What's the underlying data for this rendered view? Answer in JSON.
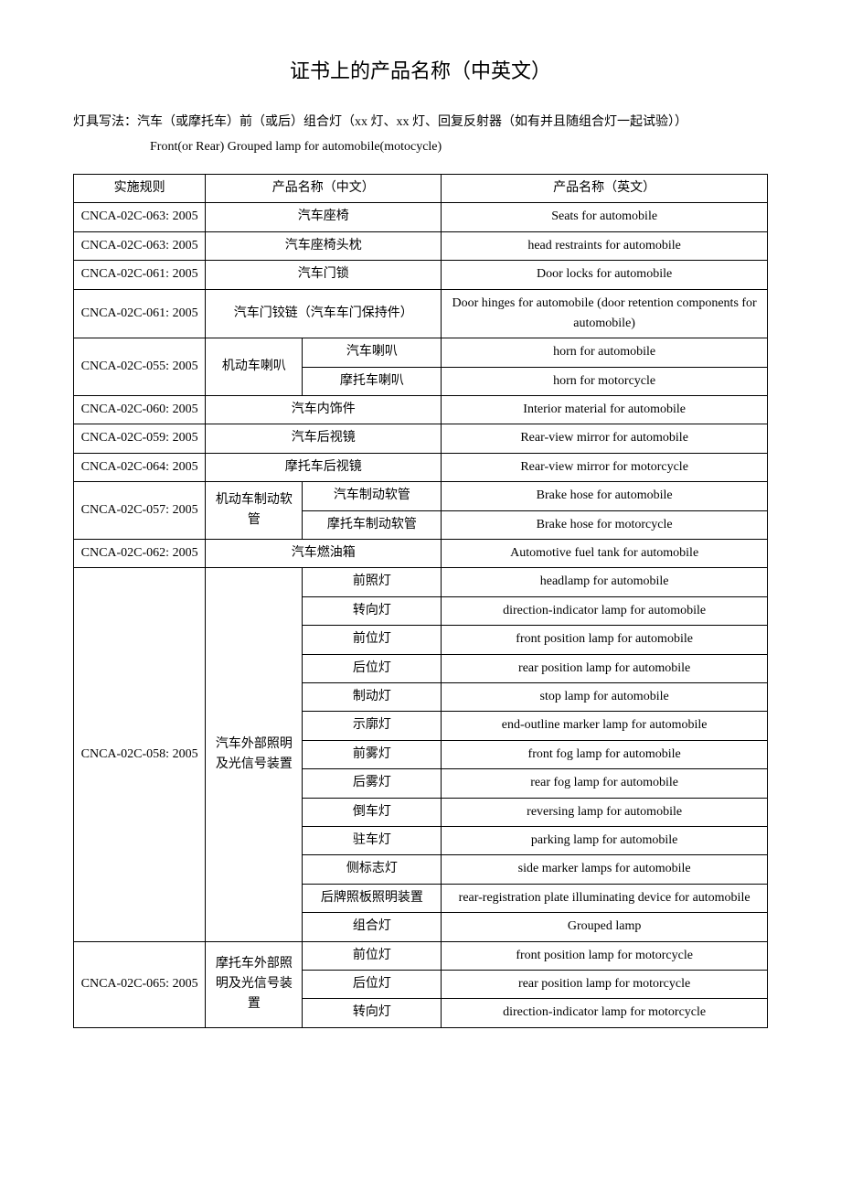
{
  "title": "证书上的产品名称（中英文）",
  "intro_line1": "灯具写法：汽车（或摩托车）前（或后）组合灯（xx 灯、xx 灯、回复反射器（如有并且随组合灯一起试验））",
  "intro_line2": "Front(or Rear) Grouped lamp for automobile(motocycle)",
  "headers": {
    "rule": "实施规则",
    "name_cn": "产品名称（中文）",
    "name_en": "产品名称（英文）"
  },
  "rows": [
    {
      "type": "simple",
      "rule": "CNCA-02C-063: 2005",
      "cn": "汽车座椅",
      "en": "Seats for automobile"
    },
    {
      "type": "simple",
      "rule": "CNCA-02C-063: 2005",
      "cn": "汽车座椅头枕",
      "en": "head restraints for automobile"
    },
    {
      "type": "simple",
      "rule": "CNCA-02C-061: 2005",
      "cn": "汽车门锁",
      "en": "Door locks for automobile"
    },
    {
      "type": "simple",
      "rule": "CNCA-02C-061: 2005",
      "cn": "汽车门铰链（汽车车门保持件）",
      "en": "Door hinges for automobile    (door retention components for automobile)"
    },
    {
      "type": "group2",
      "rule": "CNCA-02C-055: 2005",
      "group_cn": "机动车喇叭",
      "subs": [
        {
          "cn": "汽车喇叭",
          "en": "horn for automobile"
        },
        {
          "cn": "摩托车喇叭",
          "en": "horn for motorcycle"
        }
      ]
    },
    {
      "type": "simple",
      "rule": "CNCA-02C-060: 2005",
      "cn": "汽车内饰件",
      "en": "Interior material for automobile"
    },
    {
      "type": "simple",
      "rule": "CNCA-02C-059: 2005",
      "cn": "汽车后视镜",
      "en": "Rear-view mirror for automobile"
    },
    {
      "type": "simple",
      "rule": "CNCA-02C-064: 2005",
      "cn": "摩托车后视镜",
      "en": "Rear-view mirror for motorcycle"
    },
    {
      "type": "group2",
      "rule": "CNCA-02C-057: 2005",
      "group_cn": "机动车制动软管",
      "subs": [
        {
          "cn": "汽车制动软管",
          "en": "Brake hose for automobile"
        },
        {
          "cn": "摩托车制动软管",
          "en": "Brake hose for motorcycle"
        }
      ]
    },
    {
      "type": "simple",
      "rule": "CNCA-02C-062: 2005",
      "cn": "汽车燃油箱",
      "en": "Automotive fuel tank for automobile"
    },
    {
      "type": "group13",
      "rule": "CNCA-02C-058: 2005",
      "group_cn": "汽车外部照明及光信号装置",
      "subs": [
        {
          "cn": "前照灯",
          "en": "headlamp for automobile"
        },
        {
          "cn": "转向灯",
          "en": "direction-indicator lamp for automobile"
        },
        {
          "cn": "前位灯",
          "en": "front position lamp for automobile"
        },
        {
          "cn": "后位灯",
          "en": "rear position lamp for automobile"
        },
        {
          "cn": "制动灯",
          "en": "stop lamp for automobile"
        },
        {
          "cn": "示廓灯",
          "en": "end-outline marker lamp for automobile"
        },
        {
          "cn": "前雾灯",
          "en": "front fog lamp for automobile"
        },
        {
          "cn": "后雾灯",
          "en": "rear fog lamp for automobile"
        },
        {
          "cn": "倒车灯",
          "en": "reversing lamp for automobile"
        },
        {
          "cn": "驻车灯",
          "en": "parking lamp for automobile"
        },
        {
          "cn": "侧标志灯",
          "en": "side marker lamps for automobile"
        },
        {
          "cn": "后牌照板照明装置",
          "en": "rear-registration plate illuminating device for automobile"
        },
        {
          "cn": "组合灯",
          "en": "Grouped lamp"
        }
      ]
    },
    {
      "type": "group3open",
      "rule": "CNCA-02C-065: 2005",
      "group_cn": "摩托车外部照明及光信号装置",
      "subs": [
        {
          "cn": "前位灯",
          "en": "front position lamp for motorcycle"
        },
        {
          "cn": "后位灯",
          "en": "rear position lamp for motorcycle"
        },
        {
          "cn": "转向灯",
          "en": "direction-indicator lamp for motorcycle"
        }
      ]
    }
  ]
}
